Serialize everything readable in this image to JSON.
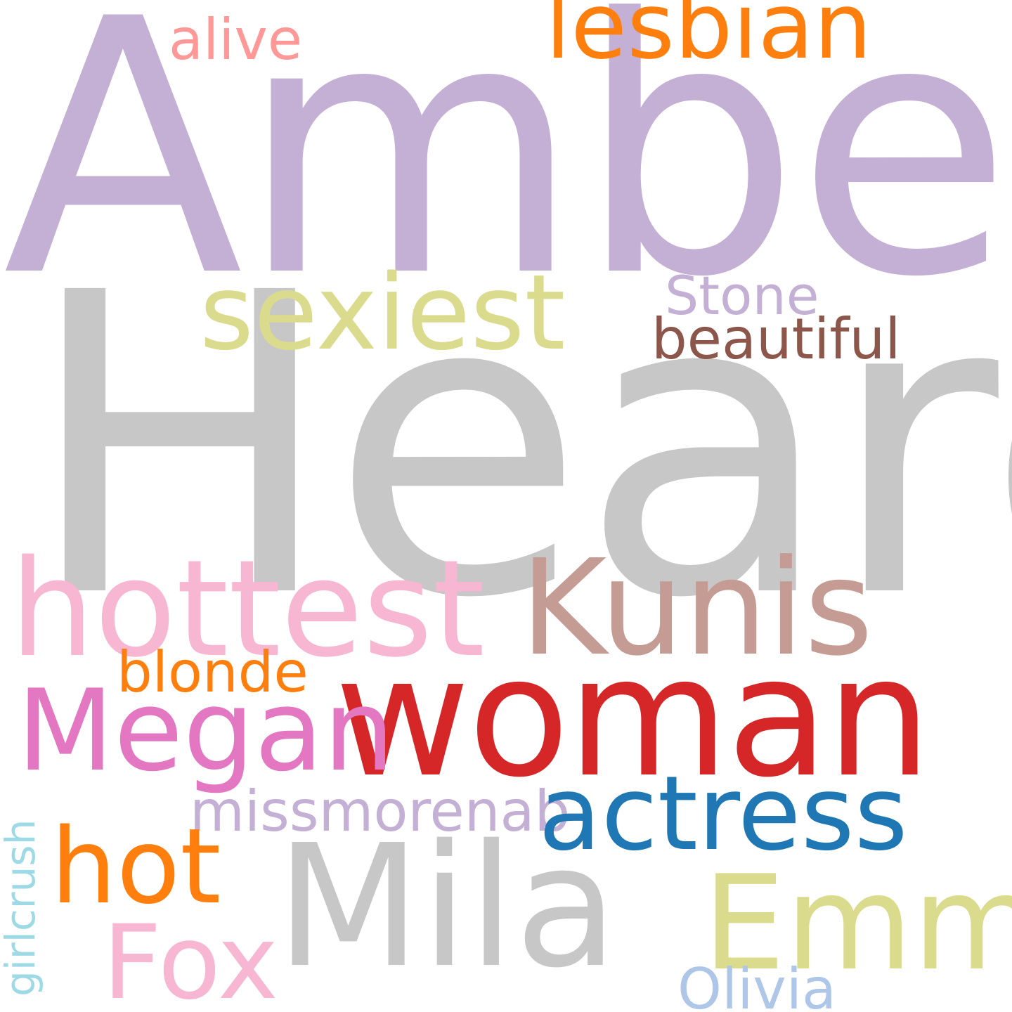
{
  "words": [
    {
      "text": "Amber",
      "color": "#c5b0d5"
    },
    {
      "text": "Heard",
      "color": "#c7c7c7"
    },
    {
      "text": "lesbian",
      "color": "#ff7f0e"
    },
    {
      "text": "alive",
      "color": "#ff9896"
    },
    {
      "text": "sexiest",
      "color": "#dbdb8d"
    },
    {
      "text": "Stone",
      "color": "#c5b0d5"
    },
    {
      "text": "beautiful",
      "color": "#8c564b"
    },
    {
      "text": "hottest",
      "color": "#f7b6d2"
    },
    {
      "text": "Kunis",
      "color": "#c49c94"
    },
    {
      "text": "blonde",
      "color": "#ff7f0e"
    },
    {
      "text": "woman",
      "color": "#d62728"
    },
    {
      "text": "Megan",
      "color": "#e377c2"
    },
    {
      "text": "missmorenab",
      "color": "#c5b0d5"
    },
    {
      "text": "actress",
      "color": "#1f77b4"
    },
    {
      "text": "hot",
      "color": "#ff7f0e"
    },
    {
      "text": "Mila",
      "color": "#c7c7c7"
    },
    {
      "text": "Emma",
      "color": "#dbdb8d"
    },
    {
      "text": "Fox",
      "color": "#f7b6d2"
    },
    {
      "text": "Olivia",
      "color": "#aec7e8"
    },
    {
      "text": "girlcrush",
      "color": "#9edae5"
    }
  ]
}
